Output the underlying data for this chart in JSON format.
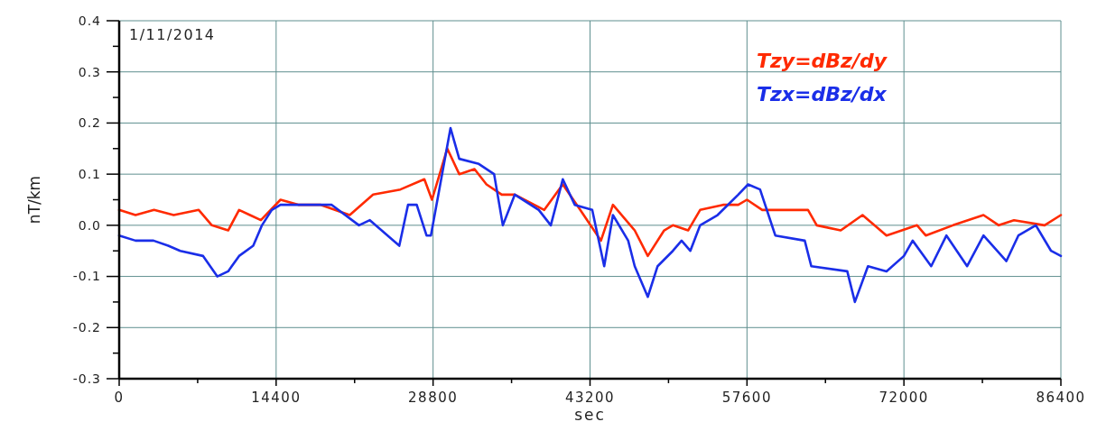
{
  "chart_data": {
    "type": "line",
    "xlabel": "sec",
    "ylabel": "nT/km",
    "annotations": [
      "1/11/2014"
    ],
    "xlim": [
      0,
      86400
    ],
    "ylim": [
      -0.3,
      0.4
    ],
    "xticks": [
      0,
      {
        "value": 7200,
        "label": null
      },
      14400,
      {
        "value": 21600,
        "label": null
      },
      28800,
      {
        "value": 36000,
        "label": null
      },
      43200,
      {
        "value": 50400,
        "label": null
      },
      57600,
      {
        "value": 64800,
        "label": null
      },
      72000,
      {
        "value": 79200,
        "label": null
      },
      86400
    ],
    "yticks": [
      {
        "value": -0.3,
        "label": "-0.3"
      },
      {
        "value": -0.25,
        "label": null
      },
      {
        "value": -0.2,
        "label": "-0.2"
      },
      {
        "value": -0.15,
        "label": null
      },
      {
        "value": -0.1,
        "label": "-0.1"
      },
      {
        "value": -0.05,
        "label": null
      },
      {
        "value": 0,
        "label": "0.0"
      },
      {
        "value": 0.05,
        "label": null
      },
      {
        "value": 0.1,
        "label": "0.1"
      },
      {
        "value": 0.15,
        "label": null
      },
      {
        "value": 0.2,
        "label": "0.2"
      },
      {
        "value": 0.25,
        "label": null
      },
      {
        "value": 0.3,
        "label": "0.3"
      },
      {
        "value": 0.35,
        "label": null
      },
      {
        "value": 0.4,
        "label": "0.4"
      }
    ],
    "grid": true,
    "legend": "top right",
    "marker": "none",
    "line_style": "solid",
    "series": [
      {
        "name": "Tzy=dBz/dy",
        "color": "#ff2a00",
        "x": [
          0,
          1500,
          3200,
          5000,
          7300,
          8500,
          10000,
          11000,
          12000,
          13000,
          14800,
          16500,
          18500,
          21150,
          23300,
          25800,
          28000,
          28700,
          30100,
          31200,
          32600,
          33700,
          35100,
          36300,
          39000,
          40700,
          42300,
          44200,
          45300,
          47300,
          48500,
          50000,
          50800,
          52200,
          53300,
          55400,
          56800,
          57600,
          59000,
          60700,
          63200,
          64000,
          66200,
          68200,
          70400,
          73200,
          74000,
          76500,
          79300,
          80700,
          82100,
          84900,
          86400
        ],
        "values": [
          0.03,
          0.02,
          0.03,
          0.02,
          0.03,
          0.0,
          -0.01,
          0.03,
          0.02,
          0.01,
          0.05,
          0.04,
          0.04,
          0.02,
          0.06,
          0.07,
          0.09,
          0.05,
          0.15,
          0.1,
          0.11,
          0.08,
          0.06,
          0.06,
          0.03,
          0.08,
          0.03,
          -0.03,
          0.04,
          -0.01,
          -0.06,
          -0.01,
          0.0,
          -0.01,
          0.03,
          0.04,
          0.04,
          0.05,
          0.03,
          0.03,
          0.03,
          0.0,
          -0.01,
          0.02,
          -0.02,
          0.0,
          -0.02,
          0.0,
          0.02,
          0.0,
          0.01,
          0.0,
          0.02
        ]
      },
      {
        "name": "Tzx=dBz/dx",
        "color": "#1a2ee8",
        "x": [
          0,
          1500,
          3150,
          4500,
          5600,
          7700,
          9000,
          10000,
          11000,
          12300,
          13100,
          14000,
          14800,
          17000,
          19500,
          22000,
          23000,
          25700,
          26500,
          27300,
          28200,
          28600,
          30400,
          31200,
          33000,
          34400,
          35200,
          36300,
          38500,
          39600,
          40700,
          41800,
          43400,
          44500,
          45300,
          46700,
          47300,
          48500,
          49400,
          50800,
          51600,
          52400,
          53300,
          54900,
          56800,
          57700,
          58800,
          60200,
          62900,
          63500,
          66800,
          67500,
          68700,
          70400,
          72000,
          72800,
          74500,
          75900,
          77800,
          79300,
          81400,
          82500,
          84100,
          85500,
          86400
        ],
        "values": [
          -0.02,
          -0.03,
          -0.03,
          -0.04,
          -0.05,
          -0.06,
          -0.1,
          -0.09,
          -0.06,
          -0.04,
          0.0,
          0.03,
          0.04,
          0.04,
          0.04,
          0.0,
          0.01,
          -0.04,
          0.04,
          0.04,
          -0.02,
          -0.02,
          0.19,
          0.13,
          0.12,
          0.1,
          0.0,
          0.06,
          0.03,
          0.0,
          0.09,
          0.04,
          0.03,
          -0.08,
          0.02,
          -0.03,
          -0.08,
          -0.14,
          -0.08,
          -0.05,
          -0.03,
          -0.05,
          0.0,
          0.02,
          0.06,
          0.08,
          0.07,
          -0.02,
          -0.03,
          -0.08,
          -0.09,
          -0.15,
          -0.08,
          -0.09,
          -0.06,
          -0.03,
          -0.08,
          -0.02,
          -0.08,
          -0.02,
          -0.07,
          -0.02,
          0.0,
          -0.05,
          -0.06
        ]
      }
    ]
  }
}
